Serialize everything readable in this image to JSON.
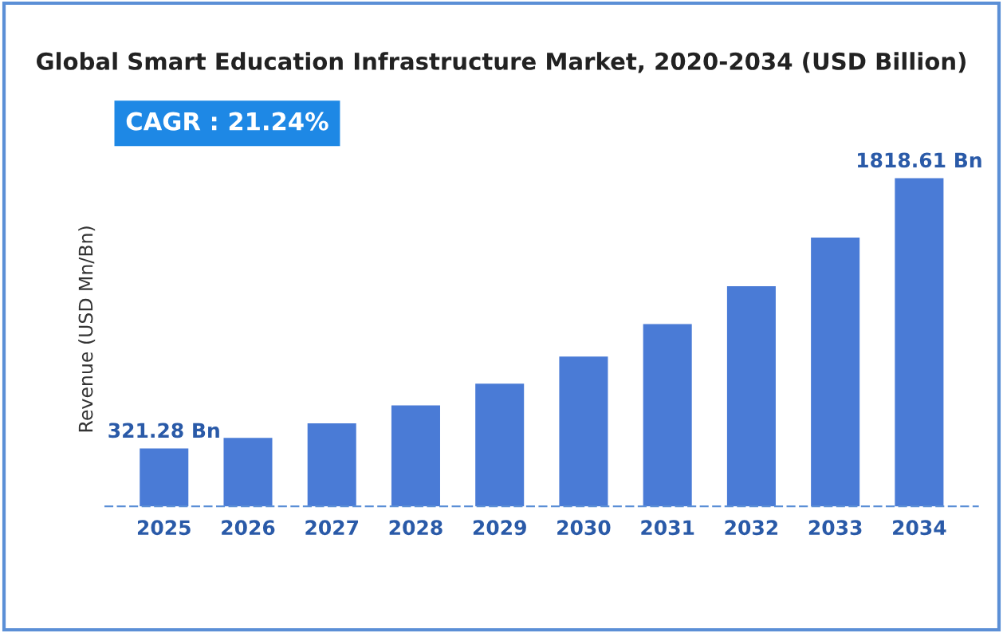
{
  "chart_data": {
    "type": "bar",
    "title": "Global Smart Education Infrastructure Market, 2020-2034 (USD Billion)",
    "ylabel": "Revenue (USD Mn/Bn)",
    "annotations": [
      "CAGR : 21.24%"
    ],
    "categories": [
      "2025",
      "2026",
      "2027",
      "2028",
      "2029",
      "2030",
      "2031",
      "2032",
      "2033",
      "2034"
    ],
    "values": [
      321.28,
      380,
      460,
      560,
      680,
      830,
      1010,
      1220,
      1490,
      1818.61
    ],
    "value_labels": [
      "321.28 Bn",
      null,
      null,
      null,
      null,
      null,
      null,
      null,
      null,
      "1818.61 Bn"
    ],
    "color": "#4a7bd6",
    "grid": false,
    "legend": false
  }
}
